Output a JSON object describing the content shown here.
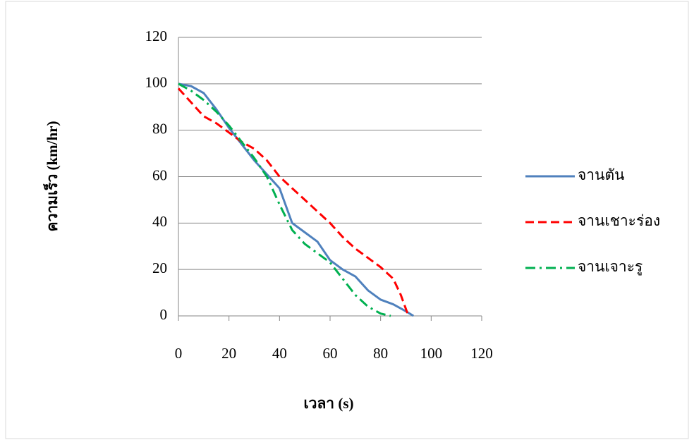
{
  "chart_data": {
    "type": "line",
    "xlabel": "เวลา (s)",
    "ylabel": "ความเร็ว (km/hr)",
    "xlim": [
      0,
      120
    ],
    "xticks": [
      0,
      20,
      40,
      60,
      80,
      100,
      120
    ],
    "ylim": [
      0,
      120
    ],
    "yticks": [
      0,
      20,
      40,
      60,
      80,
      100,
      120
    ],
    "grid": true,
    "legend": "right",
    "series": [
      {
        "name": "จานตัน",
        "color": "#4f81bd",
        "dash": "solid",
        "x": [
          0,
          5,
          10,
          15,
          20,
          25,
          30,
          35,
          40,
          45,
          50,
          55,
          60,
          65,
          70,
          75,
          80,
          85,
          90,
          93
        ],
        "values": [
          100,
          99,
          96,
          89,
          81,
          74,
          67,
          61,
          55,
          40,
          36,
          32,
          24,
          20,
          17,
          11,
          7,
          5,
          2,
          0
        ]
      },
      {
        "name": "จานเชาะร่อง",
        "color": "#ff0000",
        "dash": "dashed",
        "x": [
          0,
          5,
          10,
          15,
          20,
          25,
          30,
          35,
          40,
          45,
          50,
          55,
          60,
          65,
          70,
          75,
          80,
          85,
          88,
          91
        ],
        "values": [
          98,
          92,
          86,
          83,
          79,
          75,
          72,
          67,
          60,
          55,
          50,
          45,
          40,
          34,
          29,
          25,
          21,
          16,
          9,
          0
        ]
      },
      {
        "name": "จานเจาะรู",
        "color": "#00b050",
        "dash": "dashdot",
        "x": [
          0,
          5,
          10,
          15,
          20,
          25,
          30,
          35,
          40,
          45,
          50,
          55,
          60,
          65,
          70,
          75,
          80,
          84
        ],
        "values": [
          100,
          97,
          93,
          88,
          82,
          75,
          68,
          60,
          48,
          37,
          31,
          27,
          23,
          16,
          9,
          4,
          1,
          0
        ]
      }
    ]
  }
}
